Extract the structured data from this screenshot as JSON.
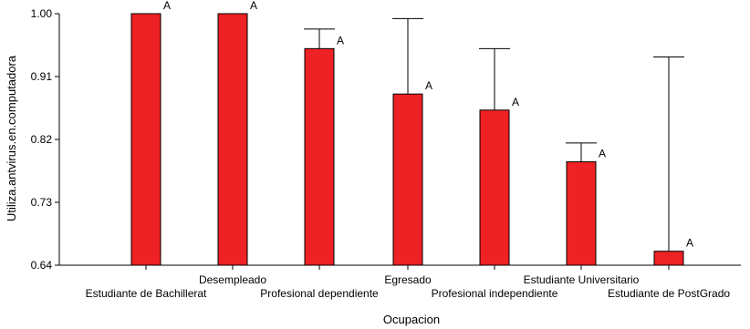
{
  "chart_data": {
    "type": "bar",
    "xlabel": "Ocupacion",
    "ylabel": "Utiliza.antvirus.en.computadora",
    "ylim": [
      0.64,
      1.0
    ],
    "yticks": [
      "0.64",
      "0.73",
      "0.82",
      "0.91",
      "1.00"
    ],
    "categories": [
      "Estudiante de Bachillerat",
      "Desempleado",
      "Profesional dependiente",
      "Egresado",
      "Profesional independiente",
      "Estudiante Universitario",
      "Estudiante de PostGrado"
    ],
    "values": [
      1.0,
      1.0,
      0.95,
      0.885,
      0.862,
      0.788,
      0.66
    ],
    "error_upper": [
      1.0,
      1.0,
      0.978,
      0.993,
      0.95,
      0.815,
      0.938
    ],
    "letters": [
      "A",
      "A",
      "A",
      "A",
      "A",
      "A",
      "A"
    ],
    "bar_color": "#ee2124",
    "grid": false,
    "legend": "none"
  }
}
